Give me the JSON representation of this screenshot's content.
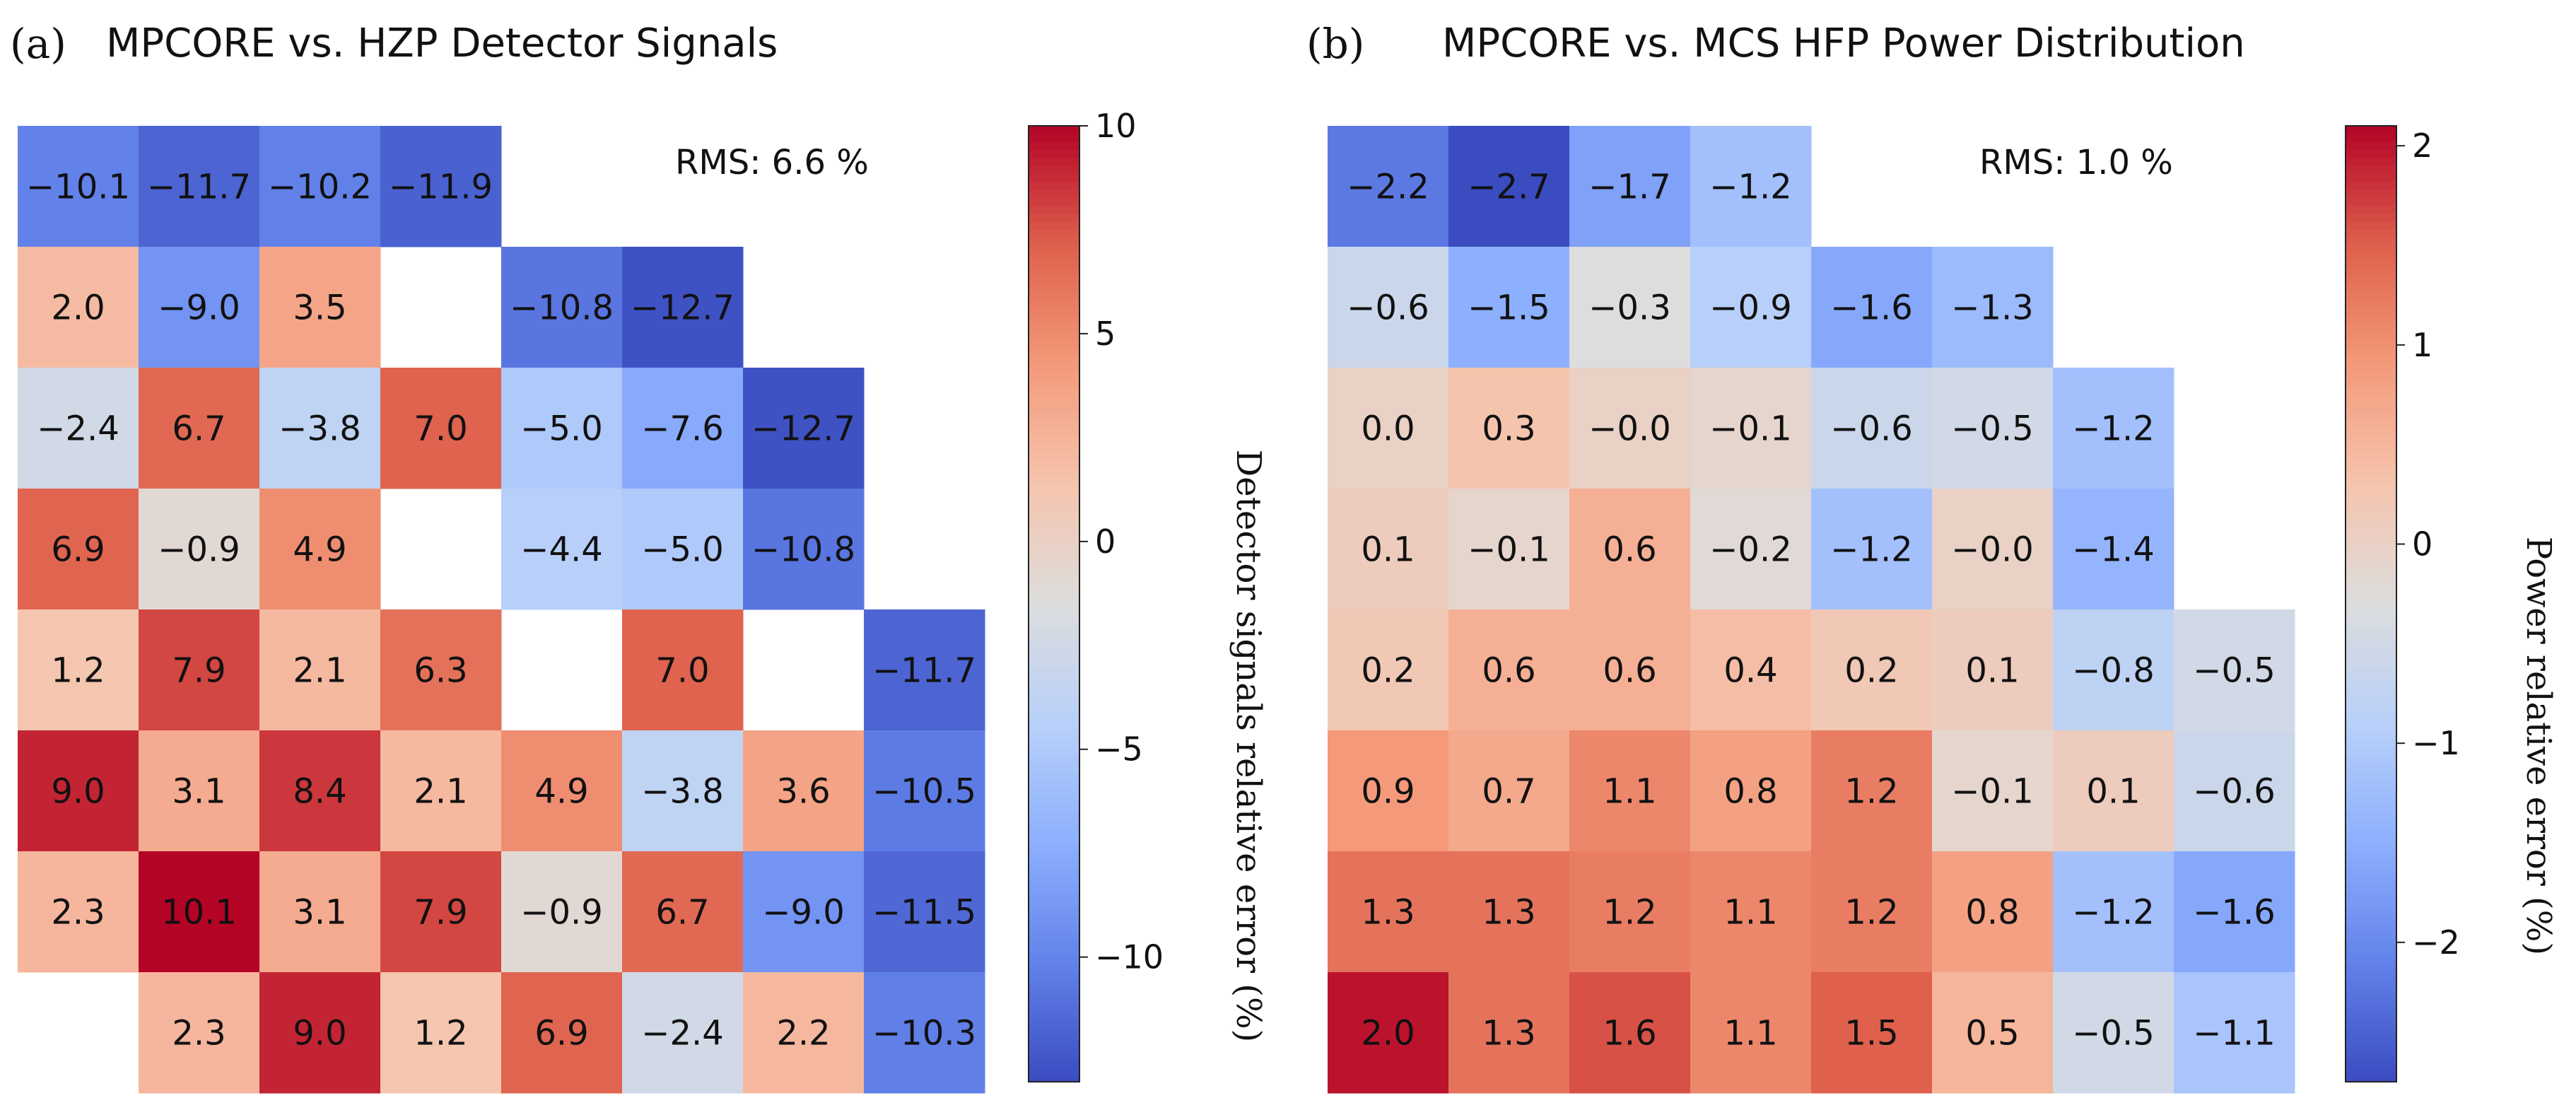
{
  "chart_data": [
    {
      "type": "heatmap",
      "panel_label": "(a)",
      "title": "MPCORE vs. HZP Detector Signals",
      "annotation": "RMS: 6.6 %",
      "colorbar_label": "Detector signals relative error (%)",
      "vmin": -13,
      "vmax": 10,
      "colorbar_ticks": [
        10,
        5,
        0,
        -5,
        -10
      ],
      "colorbar_tick_labels": [
        "10",
        "5",
        "0",
        "−5",
        "−10"
      ],
      "rows": [
        [
          -10.1,
          -11.7,
          -10.2,
          -11.9,
          null,
          null,
          null,
          null
        ],
        [
          2.0,
          -9.0,
          3.5,
          null,
          -10.8,
          -12.7,
          null,
          null
        ],
        [
          -2.4,
          6.7,
          -3.8,
          7.0,
          -5.0,
          -7.6,
          -12.7,
          null
        ],
        [
          6.9,
          -0.9,
          4.9,
          null,
          -4.4,
          -5.0,
          -10.8,
          null
        ],
        [
          1.2,
          7.9,
          2.1,
          6.3,
          null,
          7.0,
          null,
          -11.7
        ],
        [
          9.0,
          3.1,
          8.4,
          2.1,
          4.9,
          -3.8,
          3.6,
          -10.5
        ],
        [
          2.3,
          10.1,
          3.1,
          7.9,
          -0.9,
          6.7,
          -9.0,
          -11.5
        ],
        [
          null,
          2.3,
          9.0,
          1.2,
          6.9,
          -2.4,
          2.2,
          -10.3
        ]
      ],
      "cell_labels": [
        [
          "−10.1",
          "−11.7",
          "−10.2",
          "−11.9",
          "",
          "",
          "",
          ""
        ],
        [
          "2.0",
          "−9.0",
          "3.5",
          "",
          "−10.8",
          "−12.7",
          "",
          ""
        ],
        [
          "−2.4",
          "6.7",
          "−3.8",
          "7.0",
          "−5.0",
          "−7.6",
          "−12.7",
          ""
        ],
        [
          "6.9",
          "−0.9",
          "4.9",
          "",
          "−4.4",
          "−5.0",
          "−10.8",
          ""
        ],
        [
          "1.2",
          "7.9",
          "2.1",
          "6.3",
          "",
          "7.0",
          "",
          "−11.7"
        ],
        [
          "9.0",
          "3.1",
          "8.4",
          "2.1",
          "4.9",
          "−3.8",
          "3.6",
          "−10.5"
        ],
        [
          "2.3",
          "10.1",
          "3.1",
          "7.9",
          "−0.9",
          "6.7",
          "−9.0",
          "−11.5"
        ],
        [
          "",
          "2.3",
          "9.0",
          "1.2",
          "6.9",
          "−2.4",
          "2.2",
          "−10.3"
        ]
      ]
    },
    {
      "type": "heatmap",
      "panel_label": "(b)",
      "title": "MPCORE vs. MCS HFP Power Distribution",
      "annotation": "RMS: 1.0 %",
      "colorbar_label": "Power relative error (%)",
      "vmin": -2.7,
      "vmax": 2.1,
      "colorbar_ticks": [
        2,
        1,
        0,
        -1,
        -2
      ],
      "colorbar_tick_labels": [
        "2",
        "1",
        "0",
        "−1",
        "−2"
      ],
      "rows": [
        [
          -2.2,
          -2.7,
          -1.7,
          -1.2,
          null,
          null,
          null,
          null
        ],
        [
          -0.6,
          -1.5,
          -0.3,
          -0.9,
          -1.6,
          -1.3,
          null,
          null
        ],
        [
          0.0,
          0.3,
          -0.0,
          -0.1,
          -0.6,
          -0.5,
          -1.2,
          null
        ],
        [
          0.1,
          -0.1,
          0.6,
          -0.2,
          -1.2,
          -0.0,
          -1.4,
          null
        ],
        [
          0.2,
          0.6,
          0.6,
          0.4,
          0.2,
          0.1,
          -0.8,
          -0.5
        ],
        [
          0.9,
          0.7,
          1.1,
          0.8,
          1.2,
          -0.1,
          0.1,
          -0.6
        ],
        [
          1.3,
          1.3,
          1.2,
          1.1,
          1.2,
          0.8,
          -1.2,
          -1.6
        ],
        [
          2.0,
          1.3,
          1.6,
          1.1,
          1.5,
          0.5,
          -0.5,
          -1.1
        ]
      ],
      "cell_labels": [
        [
          "−2.2",
          "−2.7",
          "−1.7",
          "−1.2",
          "",
          "",
          "",
          ""
        ],
        [
          "−0.6",
          "−1.5",
          "−0.3",
          "−0.9",
          "−1.6",
          "−1.3",
          "",
          ""
        ],
        [
          "0.0",
          "0.3",
          "−0.0",
          "−0.1",
          "−0.6",
          "−0.5",
          "−1.2",
          ""
        ],
        [
          "0.1",
          "−0.1",
          "0.6",
          "−0.2",
          "−1.2",
          "−0.0",
          "−1.4",
          ""
        ],
        [
          "0.2",
          "0.6",
          "0.6",
          "0.4",
          "0.2",
          "0.1",
          "−0.8",
          "−0.5"
        ],
        [
          "0.9",
          "0.7",
          "1.1",
          "0.8",
          "1.2",
          "−0.1",
          "0.1",
          "−0.6"
        ],
        [
          "1.3",
          "1.3",
          "1.2",
          "1.1",
          "1.2",
          "0.8",
          "−1.2",
          "−1.6"
        ],
        [
          "2.0",
          "1.3",
          "1.6",
          "1.1",
          "1.5",
          "0.5",
          "−0.5",
          "−1.1"
        ]
      ]
    }
  ]
}
